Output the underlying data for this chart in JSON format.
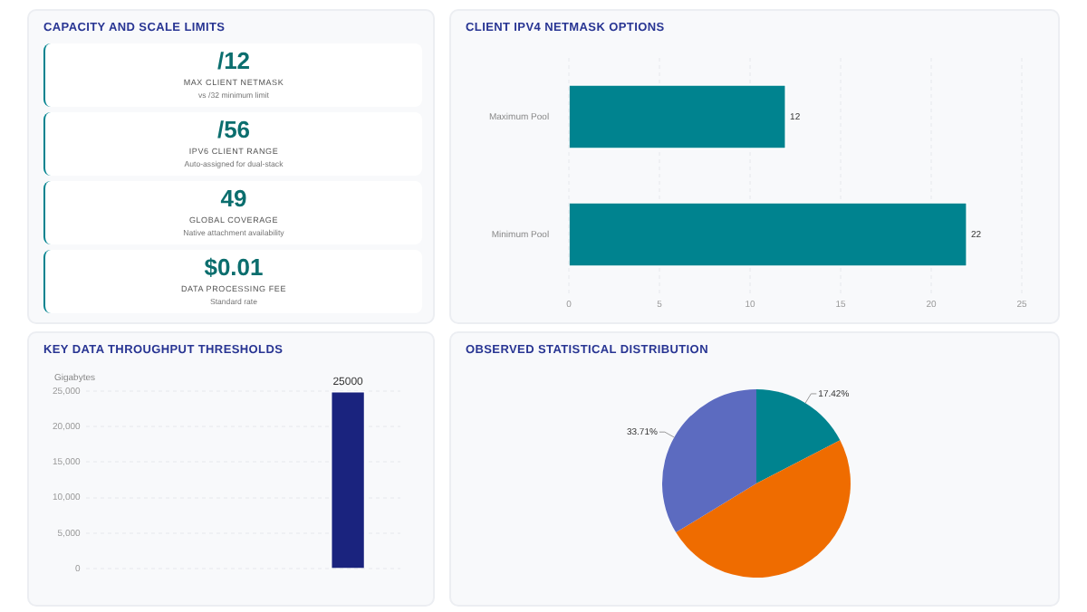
{
  "chart_data": [
    {
      "type": "other",
      "title": "CAPACITY AND SCALE LIMITS",
      "annotations": [
        "/12",
        "MAX CLIENT NETMASK",
        "vs /32 minimum limit",
        "/56",
        "IPV6 CLIENT RANGE",
        "Auto-assigned for dual-stack",
        "49",
        "GLOBAL COVERAGE",
        "Native attachment availability",
        "$0.01",
        "DATA PROCESSING FEE",
        "Standard rate"
      ]
    },
    {
      "type": "bar",
      "orientation": "horizontal",
      "title": "CLIENT IPV4 NETMASK OPTIONS",
      "categories": [
        "Maximum Pool",
        "Minimum Pool"
      ],
      "values": [
        12,
        22
      ],
      "color": "#00838f",
      "xlim": [
        0,
        25
      ],
      "xticks": [
        0,
        5,
        10,
        15,
        20,
        25
      ],
      "grid": "x",
      "data_labels": true
    },
    {
      "type": "bar",
      "title": "KEY DATA THROUGHPUT THRESHOLDS",
      "ylabel": "Gigabytes",
      "categories": [
        null,
        null,
        null
      ],
      "values": [
        null,
        null,
        25000
      ],
      "color": "#1a237e",
      "ylim": [
        0,
        25000
      ],
      "yticks": [
        {
          "value": 0,
          "label": "0"
        },
        {
          "value": 5000,
          "label": "5,000"
        },
        {
          "value": 10000,
          "label": "10,000"
        },
        {
          "value": 15000,
          "label": "15,000"
        },
        {
          "value": 20000,
          "label": "20,000"
        },
        {
          "value": 25000,
          "label": "25,000"
        }
      ],
      "grid": "y",
      "data_labels": true
    },
    {
      "type": "pie",
      "title": "OBSERVED STATISTICAL DISTRIBUTION",
      "categories": [
        null,
        null,
        null
      ],
      "values": [
        17.42,
        48.87,
        33.71
      ],
      "colors": [
        "#00838f",
        "#ef6c00",
        "#5c6bc0"
      ],
      "value_labels": [
        "17.42%",
        null,
        "33.71%"
      ]
    }
  ]
}
